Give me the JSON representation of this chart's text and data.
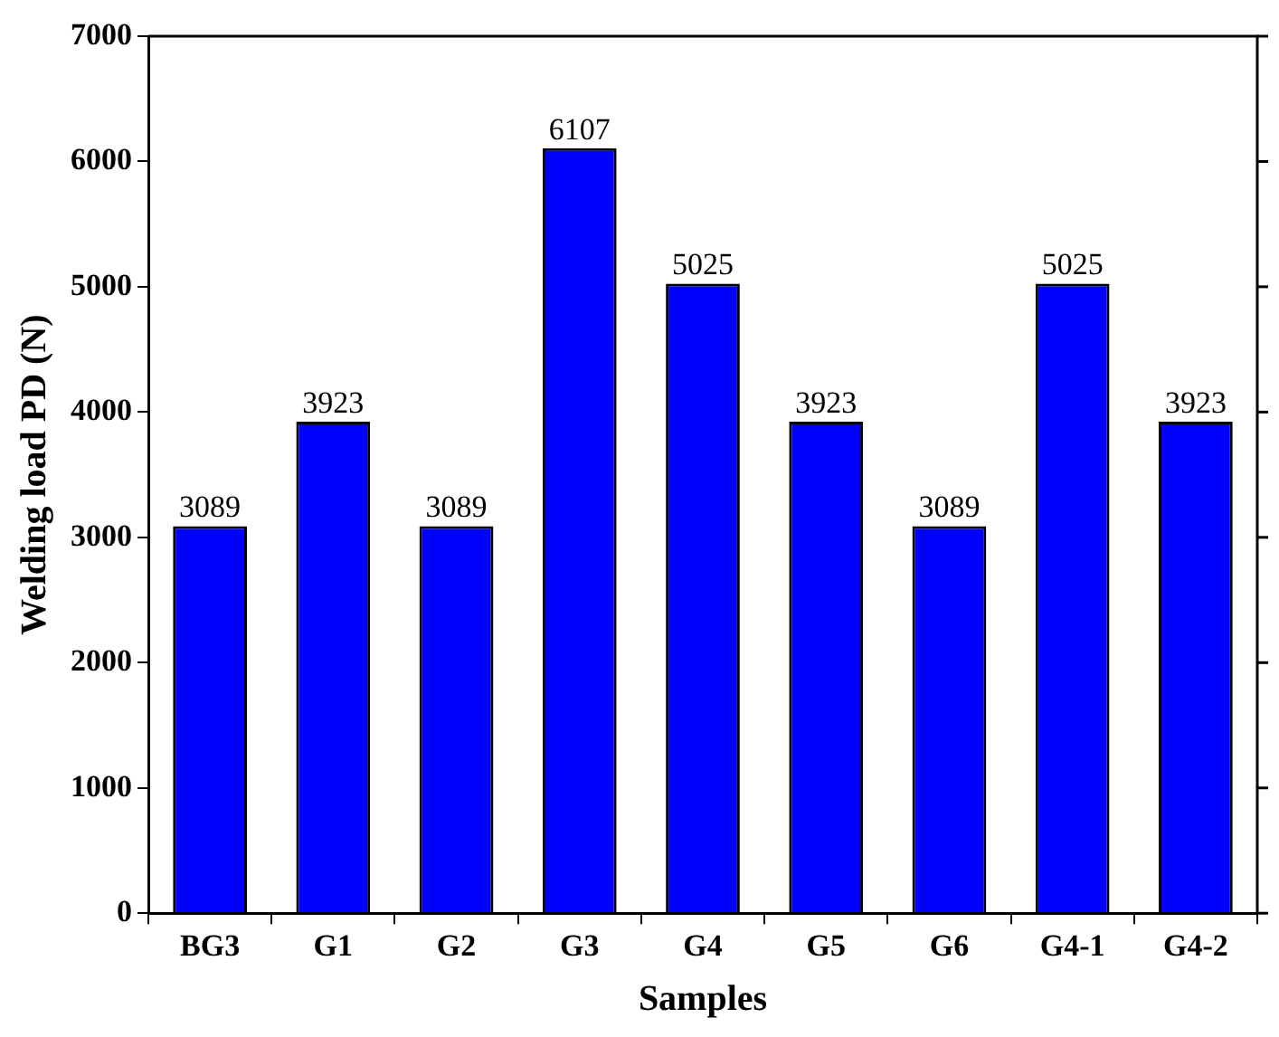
{
  "chart_data": {
    "type": "bar",
    "xlabel": "Samples",
    "ylabel": "Welding load PD (N)",
    "categories": [
      "BG3",
      "G1",
      "G2",
      "G3",
      "G4",
      "G5",
      "G6",
      "G4-1",
      "G4-2"
    ],
    "values": [
      3089,
      3923,
      3089,
      6107,
      5025,
      3923,
      3089,
      5025,
      3923
    ],
    "color": "#0000ff",
    "ylim": [
      0,
      7000
    ],
    "yticks": [
      0,
      1000,
      2000,
      3000,
      4000,
      5000,
      6000,
      7000
    ],
    "grid": false,
    "legend": false,
    "data_labels": true
  }
}
